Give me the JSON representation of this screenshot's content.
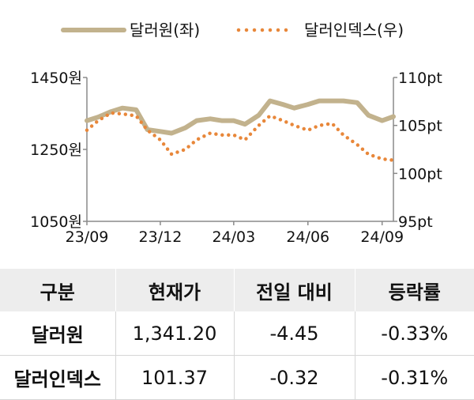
{
  "chart_data": {
    "type": "line",
    "legend": {
      "position": "top-center",
      "entries": [
        "달러원(좌)",
        "달러인덱스(우)"
      ]
    },
    "x_tick_labels": [
      "23/09",
      "23/12",
      "24/03",
      "24/06",
      "24/09"
    ],
    "y_left": {
      "ticks": [
        "1450원",
        "1250원",
        "1050원"
      ],
      "range": [
        1050,
        1450
      ]
    },
    "y_right": {
      "ticks": [
        "110pt",
        "105pt",
        "100pt",
        "95pt"
      ],
      "range": [
        95,
        110
      ]
    },
    "grid": false,
    "series": [
      {
        "name": "달러원(좌)",
        "axis": "left",
        "style": "solid",
        "color": "#c2b28d",
        "x": [
          "2023-09-01",
          "2023-09-15",
          "2023-10-01",
          "2023-10-15",
          "2023-11-01",
          "2023-11-15",
          "2023-12-01",
          "2023-12-15",
          "2024-01-01",
          "2024-01-15",
          "2024-02-01",
          "2024-02-15",
          "2024-03-01",
          "2024-03-15",
          "2024-04-01",
          "2024-04-15",
          "2024-05-01",
          "2024-05-15",
          "2024-06-01",
          "2024-06-15",
          "2024-07-01",
          "2024-07-15",
          "2024-08-01",
          "2024-08-15",
          "2024-09-01",
          "2024-09-15"
        ],
        "values": [
          1330,
          1340,
          1355,
          1365,
          1360,
          1305,
          1300,
          1295,
          1310,
          1330,
          1335,
          1330,
          1330,
          1320,
          1345,
          1385,
          1375,
          1365,
          1375,
          1385,
          1385,
          1385,
          1380,
          1345,
          1330,
          1341.2
        ]
      },
      {
        "name": "달러인덱스(우)",
        "axis": "right",
        "style": "dotted",
        "color": "#e8873a",
        "x": [
          "2023-09-01",
          "2023-09-15",
          "2023-10-01",
          "2023-10-15",
          "2023-11-01",
          "2023-11-15",
          "2023-12-01",
          "2023-12-15",
          "2024-01-01",
          "2024-01-15",
          "2024-02-01",
          "2024-02-15",
          "2024-03-01",
          "2024-03-15",
          "2024-04-01",
          "2024-04-15",
          "2024-05-01",
          "2024-05-15",
          "2024-06-01",
          "2024-06-15",
          "2024-07-01",
          "2024-07-15",
          "2024-08-01",
          "2024-08-15",
          "2024-09-01",
          "2024-09-15"
        ],
        "values": [
          104.5,
          105.5,
          106.3,
          106.2,
          106,
          104.5,
          103.5,
          102,
          102.5,
          103.5,
          104.2,
          104,
          104,
          103.5,
          105,
          106,
          105.5,
          105,
          104.5,
          105,
          105.2,
          104,
          103,
          102,
          101.5,
          101.37
        ]
      }
    ]
  },
  "table": {
    "headers": [
      "구분",
      "현재가",
      "전일 대비",
      "등락률"
    ],
    "rows": [
      [
        "달러원",
        "1,341.20",
        "-4.45",
        "-0.33%"
      ],
      [
        "달러인덱스",
        "101.37",
        "-0.32",
        "-0.31%"
      ]
    ]
  }
}
